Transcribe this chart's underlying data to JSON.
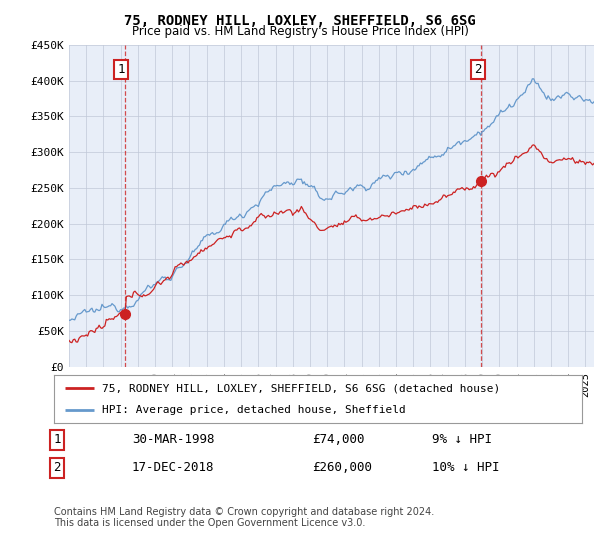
{
  "title": "75, RODNEY HILL, LOXLEY, SHEFFIELD, S6 6SG",
  "subtitle": "Price paid vs. HM Land Registry's House Price Index (HPI)",
  "ylim": [
    0,
    450000
  ],
  "yticks": [
    0,
    50000,
    100000,
    150000,
    200000,
    250000,
    300000,
    350000,
    400000,
    450000
  ],
  "ytick_labels": [
    "£0",
    "£50K",
    "£100K",
    "£150K",
    "£200K",
    "£250K",
    "£300K",
    "£350K",
    "£400K",
    "£450K"
  ],
  "hpi_color": "#6699cc",
  "property_color": "#cc2222",
  "sale1_date": 1998.24,
  "sale1_price": 74000,
  "sale2_date": 2018.96,
  "sale2_price": 260000,
  "legend_property": "75, RODNEY HILL, LOXLEY, SHEFFIELD, S6 6SG (detached house)",
  "legend_hpi": "HPI: Average price, detached house, Sheffield",
  "table_row1": [
    "1",
    "30-MAR-1998",
    "£74,000",
    "9% ↓ HPI"
  ],
  "table_row2": [
    "2",
    "17-DEC-2018",
    "£260,000",
    "10% ↓ HPI"
  ],
  "footer": "Contains HM Land Registry data © Crown copyright and database right 2024.\nThis data is licensed under the Open Government Licence v3.0.",
  "background_color": "#ffffff",
  "plot_bg_color": "#e8eef8",
  "grid_color": "#c0c8d8",
  "xmin": 1995,
  "xmax": 2025.5,
  "title_fontsize": 10,
  "subtitle_fontsize": 9
}
